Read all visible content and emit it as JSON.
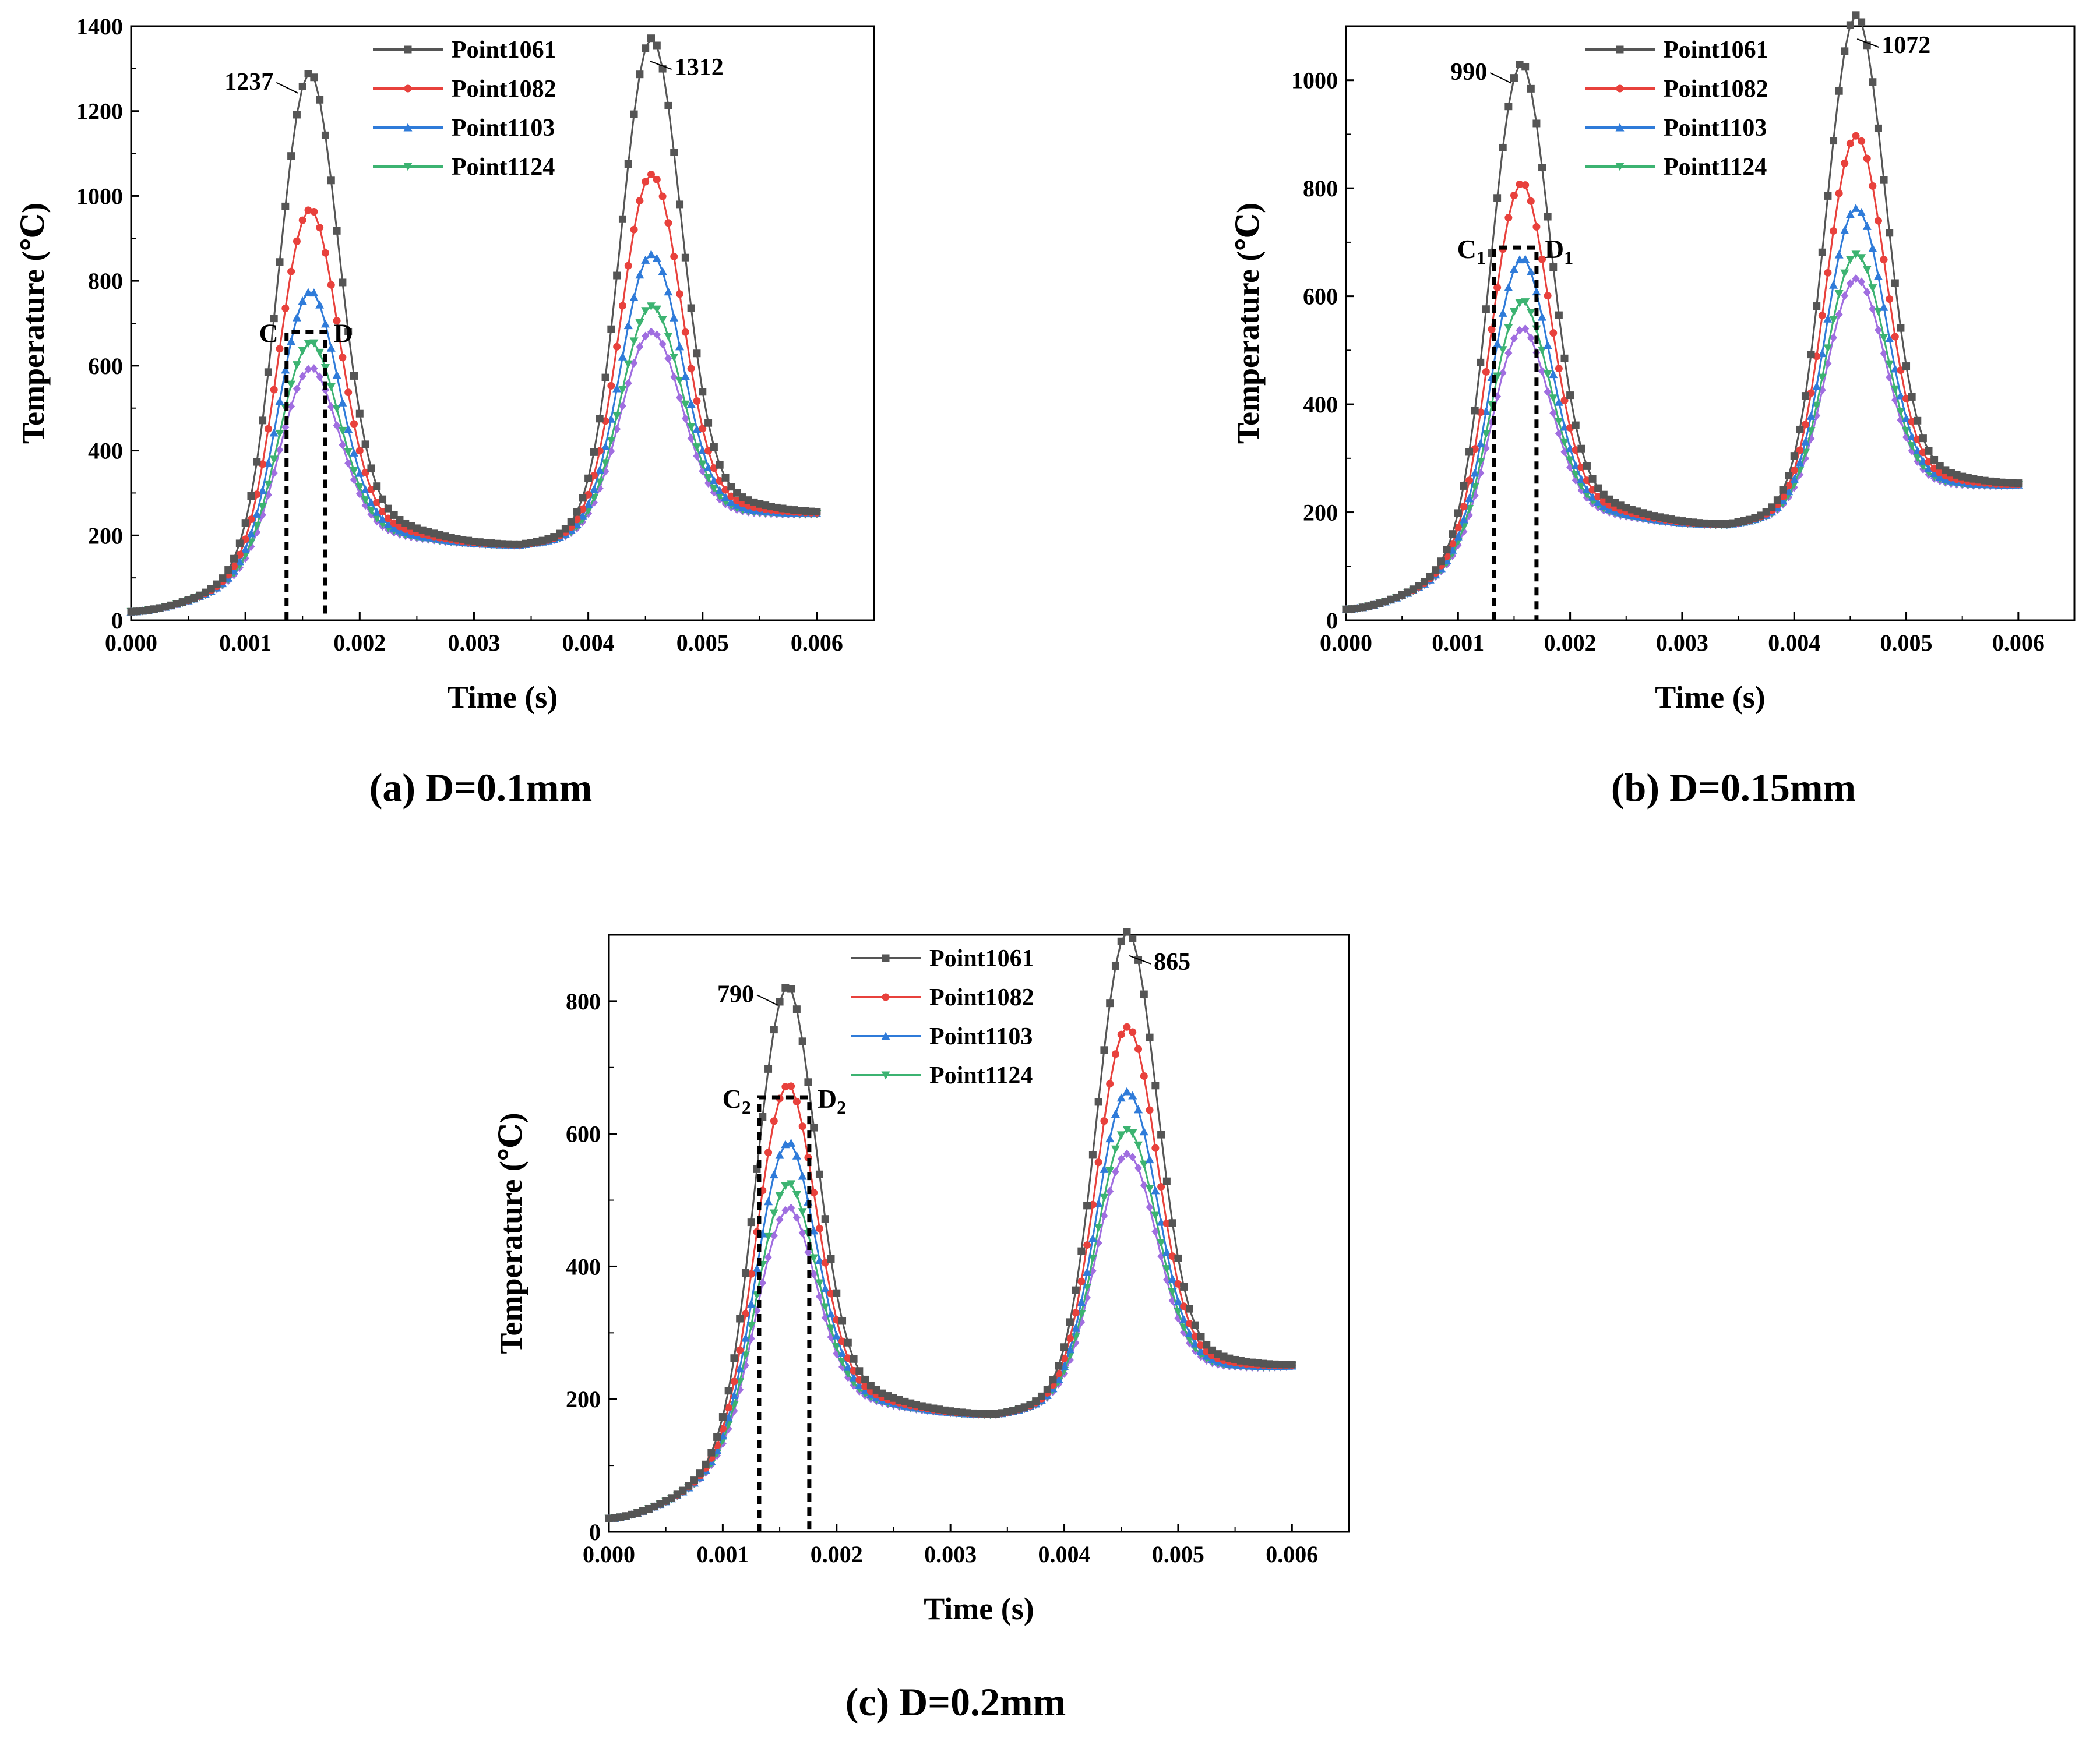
{
  "chart_data": [
    {
      "type": "line",
      "caption": "(a) D=0.1mm",
      "xlabel": "Time (s)",
      "ylabel": "Temperature (℃)",
      "xlim": [
        0,
        0.0065
      ],
      "ylim": [
        0,
        1400
      ],
      "xticks": [
        0,
        0.001,
        0.002,
        0.003,
        0.004,
        0.005,
        0.006
      ],
      "xtick_labels": [
        "0.000",
        "0.001",
        "0.002",
        "0.003",
        "0.004",
        "0.005",
        "0.006"
      ],
      "yticks": [
        0,
        200,
        400,
        600,
        800,
        1000,
        1200,
        1400
      ],
      "ytick_labels": [
        "0",
        "200",
        "400",
        "600",
        "800",
        "1000",
        "1200",
        "1400"
      ],
      "legend_position": "top-center",
      "series": [
        {
          "name": "Point1061",
          "color": "#555555",
          "marker": "square",
          "peak1": 1237,
          "peak2": 1312
        },
        {
          "name": "Point1082",
          "color": "#e8413c",
          "marker": "circle",
          "peak1": 930,
          "peak2": 1005
        },
        {
          "name": "Point1103",
          "color": "#2f7bd9",
          "marker": "triangle-up",
          "peak1": 745,
          "peak2": 825
        },
        {
          "name": "Point1124",
          "color": "#3cb371",
          "marker": "triangle-down",
          "peak1": 630,
          "peak2": 708
        },
        {
          "name": "",
          "color": "#a06ee0",
          "marker": "diamond",
          "peak1": 572,
          "peak2": 650
        }
      ],
      "annotations": [
        {
          "text": "1237",
          "x": 0.0015,
          "y": 1237
        },
        {
          "text": "1312",
          "x": 0.0045,
          "y": 1312
        }
      ],
      "window": {
        "left_label": "C",
        "left_sub": "",
        "right_label": "D",
        "right_sub": "",
        "x_start": 0.00136,
        "x_end": 0.0017,
        "y": 680
      }
    },
    {
      "type": "line",
      "caption": "(b) D=0.15mm",
      "xlabel": "Time (s)",
      "ylabel": "Temperature (℃)",
      "xlim": [
        0,
        0.0065
      ],
      "ylim": [
        0,
        1100
      ],
      "xticks": [
        0,
        0.001,
        0.002,
        0.003,
        0.004,
        0.005,
        0.006
      ],
      "xtick_labels": [
        "0.000",
        "0.001",
        "0.002",
        "0.003",
        "0.004",
        "0.005",
        "0.006"
      ],
      "yticks": [
        0,
        200,
        400,
        600,
        800,
        1000
      ],
      "ytick_labels": [
        "0",
        "200",
        "400",
        "600",
        "800",
        "1000"
      ],
      "legend_position": "top-center",
      "series": [
        {
          "name": "Point1061",
          "color": "#555555",
          "marker": "square",
          "peak1": 990,
          "peak2": 1072
        },
        {
          "name": "Point1082",
          "color": "#e8413c",
          "marker": "circle",
          "peak1": 778,
          "peak2": 858
        },
        {
          "name": "Point1103",
          "color": "#2f7bd9",
          "marker": "triangle-up",
          "peak1": 645,
          "peak2": 730
        },
        {
          "name": "Point1124",
          "color": "#3cb371",
          "marker": "triangle-down",
          "peak1": 568,
          "peak2": 648
        },
        {
          "name": "",
          "color": "#a06ee0",
          "marker": "diamond",
          "peak1": 520,
          "peak2": 605
        }
      ],
      "annotations": [
        {
          "text": "990",
          "x": 0.00152,
          "y": 990
        },
        {
          "text": "1072",
          "x": 0.00452,
          "y": 1072
        }
      ],
      "window": {
        "left_label": "C",
        "left_sub": "1",
        "right_label": "D",
        "right_sub": "1",
        "x_start": 0.00132,
        "x_end": 0.0017,
        "y": 690
      }
    },
    {
      "type": "line",
      "caption": "(c) D=0.2mm",
      "xlabel": "Time (s)",
      "ylabel": "Temperature (℃)",
      "xlim": [
        0,
        0.0065
      ],
      "ylim": [
        0,
        900
      ],
      "xticks": [
        0,
        0.001,
        0.002,
        0.003,
        0.004,
        0.005,
        0.006
      ],
      "xtick_labels": [
        "0.000",
        "0.001",
        "0.002",
        "0.003",
        "0.004",
        "0.005",
        "0.006"
      ],
      "yticks": [
        0,
        200,
        400,
        600,
        800
      ],
      "ytick_labels": [
        "0",
        "200",
        "400",
        "600",
        "800"
      ],
      "legend_position": "top-center",
      "series": [
        {
          "name": "Point1061",
          "color": "#555555",
          "marker": "square",
          "peak1": 790,
          "peak2": 865
        },
        {
          "name": "Point1082",
          "color": "#e8413c",
          "marker": "circle",
          "peak1": 648,
          "peak2": 728
        },
        {
          "name": "Point1103",
          "color": "#2f7bd9",
          "marker": "triangle-up",
          "peak1": 565,
          "peak2": 635
        },
        {
          "name": "Point1124",
          "color": "#3cb371",
          "marker": "triangle-down",
          "peak1": 505,
          "peak2": 580
        },
        {
          "name": "",
          "color": "#a06ee0",
          "marker": "diamond",
          "peak1": 470,
          "peak2": 545
        }
      ],
      "annotations": [
        {
          "text": "790",
          "x": 0.00153,
          "y": 790
        },
        {
          "text": "865",
          "x": 0.00453,
          "y": 865
        }
      ],
      "window": {
        "left_label": "C",
        "left_sub": "2",
        "right_label": "D",
        "right_sub": "2",
        "x_start": 0.00132,
        "x_end": 0.00176,
        "y": 655
      }
    }
  ]
}
